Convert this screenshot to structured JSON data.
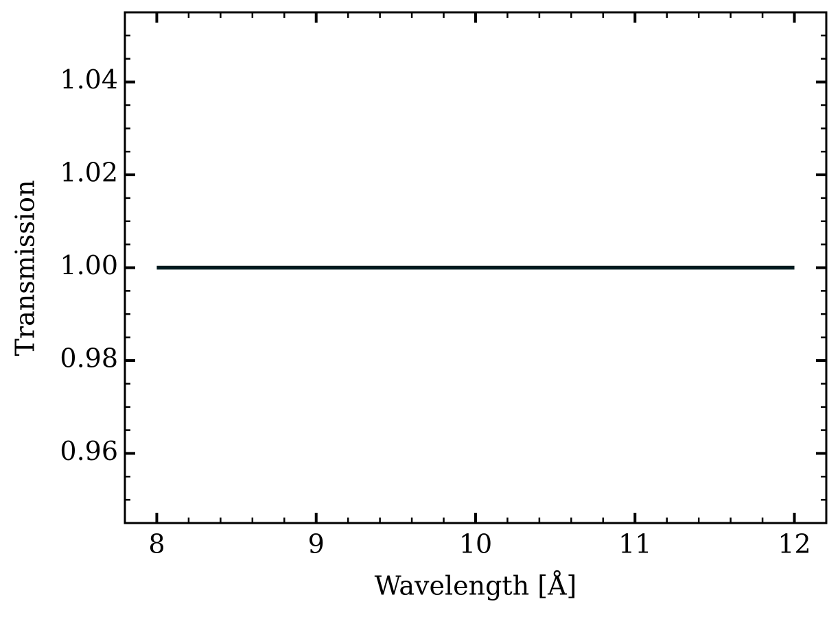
{
  "chart_data": {
    "type": "line",
    "xlabel": "Wavelength [Å]",
    "ylabel": "Transmission",
    "x": [
      8,
      12
    ],
    "values": [
      1,
      1
    ],
    "color": "#001a1f",
    "xlim": [
      7.8,
      12.2
    ],
    "ylim": [
      0.945,
      1.055
    ],
    "xticks": [
      8,
      9,
      10,
      11,
      12
    ],
    "yticks": [
      0.96,
      0.98,
      {
        "value": 1,
        "label": "1.00"
      },
      1.02,
      1.04
    ],
    "xminorticks": [
      8.2,
      8.4,
      8.6,
      8.8,
      9.2,
      9.4,
      9.6,
      9.8,
      10.2,
      10.4,
      10.6,
      10.8,
      11.2,
      11.4,
      11.6,
      11.8
    ],
    "yminorticks": [
      0.95,
      0.955,
      0.965,
      0.97,
      0.975,
      0.985,
      0.99,
      0.995,
      1.005,
      1.01,
      1.015,
      1.025,
      1.03,
      1.035,
      1.045,
      1.05
    ]
  }
}
